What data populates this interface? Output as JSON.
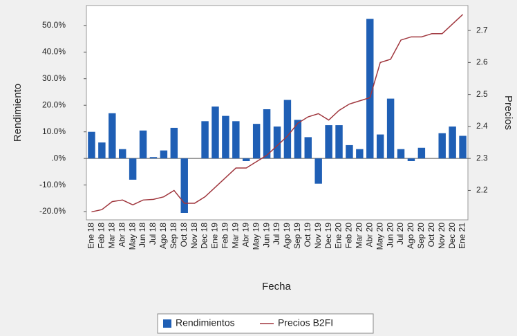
{
  "chart_data": {
    "type": "bar-line",
    "x_label": "Fecha",
    "y_label": "Rendimiento",
    "y2_label": "Precios",
    "categories": [
      "Ene 18",
      "Feb 18",
      "Mar 18",
      "Abr 18",
      "May 18",
      "Jun 18",
      "Jul 18",
      "Ago 18",
      "Sep 18",
      "Oct 18",
      "Nov 18",
      "Dec 18",
      "Ene 19",
      "Feb 19",
      "Mar 19",
      "Abr 19",
      "May 19",
      "Jun 19",
      "Jul 19",
      "Ago 19",
      "Sep 19",
      "Oct 19",
      "Nov 19",
      "Dec 19",
      "Ene 20",
      "Feb 20",
      "Mar 20",
      "Abr 20",
      "May 20",
      "Jun 20",
      "Jul 20",
      "Ago 20",
      "Sep 20",
      "Oct 20",
      "Nov 20",
      "Dec 20",
      "Ene 21"
    ],
    "series": [
      {
        "name": "Rendimientos",
        "kind": "bar",
        "color": "#1f5fb5",
        "values": [
          10,
          6,
          17,
          3.5,
          -8,
          10.5,
          0.5,
          3,
          11.5,
          -20.5,
          0,
          14,
          19.5,
          16,
          14,
          -1,
          13,
          18.5,
          12,
          22,
          14.5,
          8,
          -9.5,
          12.5,
          12.5,
          5,
          3.5,
          52.5,
          9,
          22.5,
          3.5,
          -1,
          4,
          0,
          9.5,
          12,
          8.5
        ]
      },
      {
        "name": "Precios B2FI",
        "kind": "line",
        "axis": "y2",
        "color": "#a0373e",
        "values": [
          2.133,
          2.14,
          2.165,
          2.17,
          2.155,
          2.17,
          2.172,
          2.18,
          2.2,
          2.16,
          2.16,
          2.18,
          2.21,
          2.24,
          2.27,
          2.27,
          2.29,
          2.31,
          2.34,
          2.37,
          2.41,
          2.43,
          2.44,
          2.42,
          2.45,
          2.47,
          2.48,
          2.49,
          2.6,
          2.61,
          2.67,
          2.68,
          2.68,
          2.69,
          2.69,
          2.72,
          2.75
        ]
      }
    ],
    "ylim": [
      -23.1,
      57.5
    ],
    "yticks": [
      {
        "value": -20,
        "label": "-20.0%"
      },
      {
        "value": -10,
        "label": "-10.0%"
      },
      {
        "value": 0,
        "label": ".0%"
      },
      {
        "value": 10,
        "label": "10.0%"
      },
      {
        "value": 20,
        "label": "20.0%"
      },
      {
        "value": 30,
        "label": "30.0%"
      },
      {
        "value": 40,
        "label": "40.0%"
      },
      {
        "value": 50,
        "label": "50.0%"
      }
    ],
    "y2lim": [
      2.108,
      2.778
    ],
    "y2ticks": [
      2.2,
      2.3,
      2.4,
      2.5,
      2.6,
      2.7
    ]
  }
}
